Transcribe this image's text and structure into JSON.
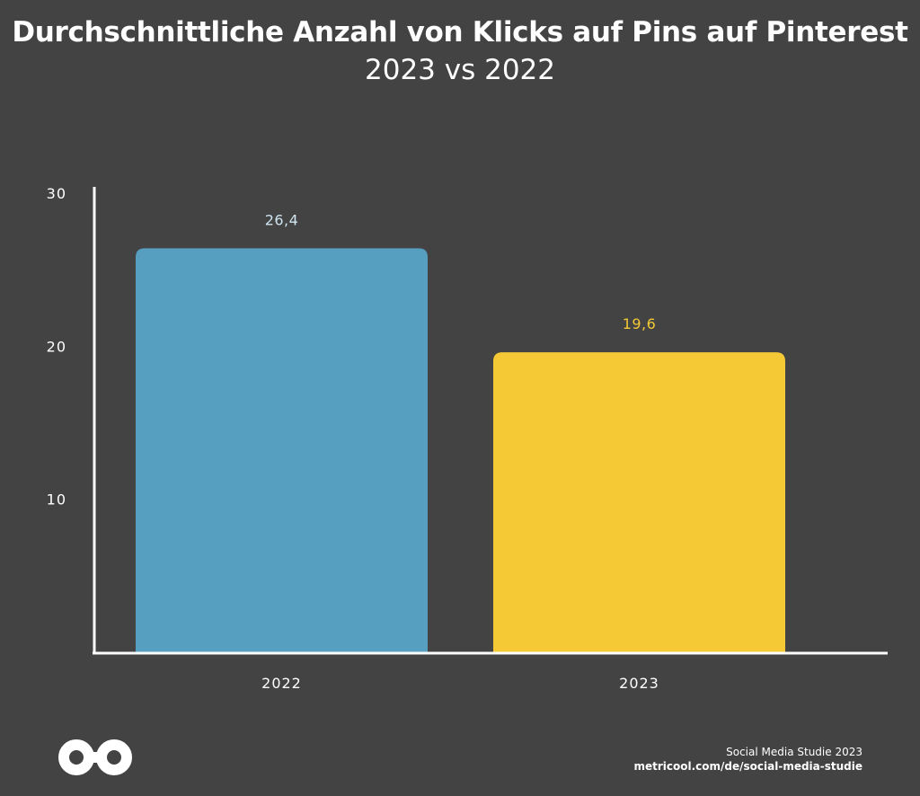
{
  "chart_data": {
    "type": "bar",
    "title": "Durchschnittliche Anzahl von Klicks auf Pins auf Pinterest",
    "subtitle": "2023 vs 2022",
    "categories": [
      "2022",
      "2023"
    ],
    "values": [
      26.4,
      19.6
    ],
    "value_labels": [
      "26,4",
      "19,6"
    ],
    "bar_colors": [
      "#579fc0",
      "#f4c935"
    ],
    "ylim": [
      0,
      30
    ],
    "yticks": [
      10,
      20,
      30
    ],
    "ytick_labels": [
      "10",
      "20",
      "30"
    ],
    "grid": false,
    "legend": "none",
    "xlabel": "",
    "ylabel": ""
  },
  "colors": {
    "background": "#434343",
    "axis": "#ffffff",
    "text": "#ffffff",
    "value_label_2022": "#cfe4ef",
    "value_label_2023": "#f4c935"
  },
  "footer": {
    "line1": "Social Media Studie 2023",
    "line2": "metricool.com/de/social-media-studie"
  },
  "logo": {
    "icon": "metricool-infinity-logo-icon"
  }
}
